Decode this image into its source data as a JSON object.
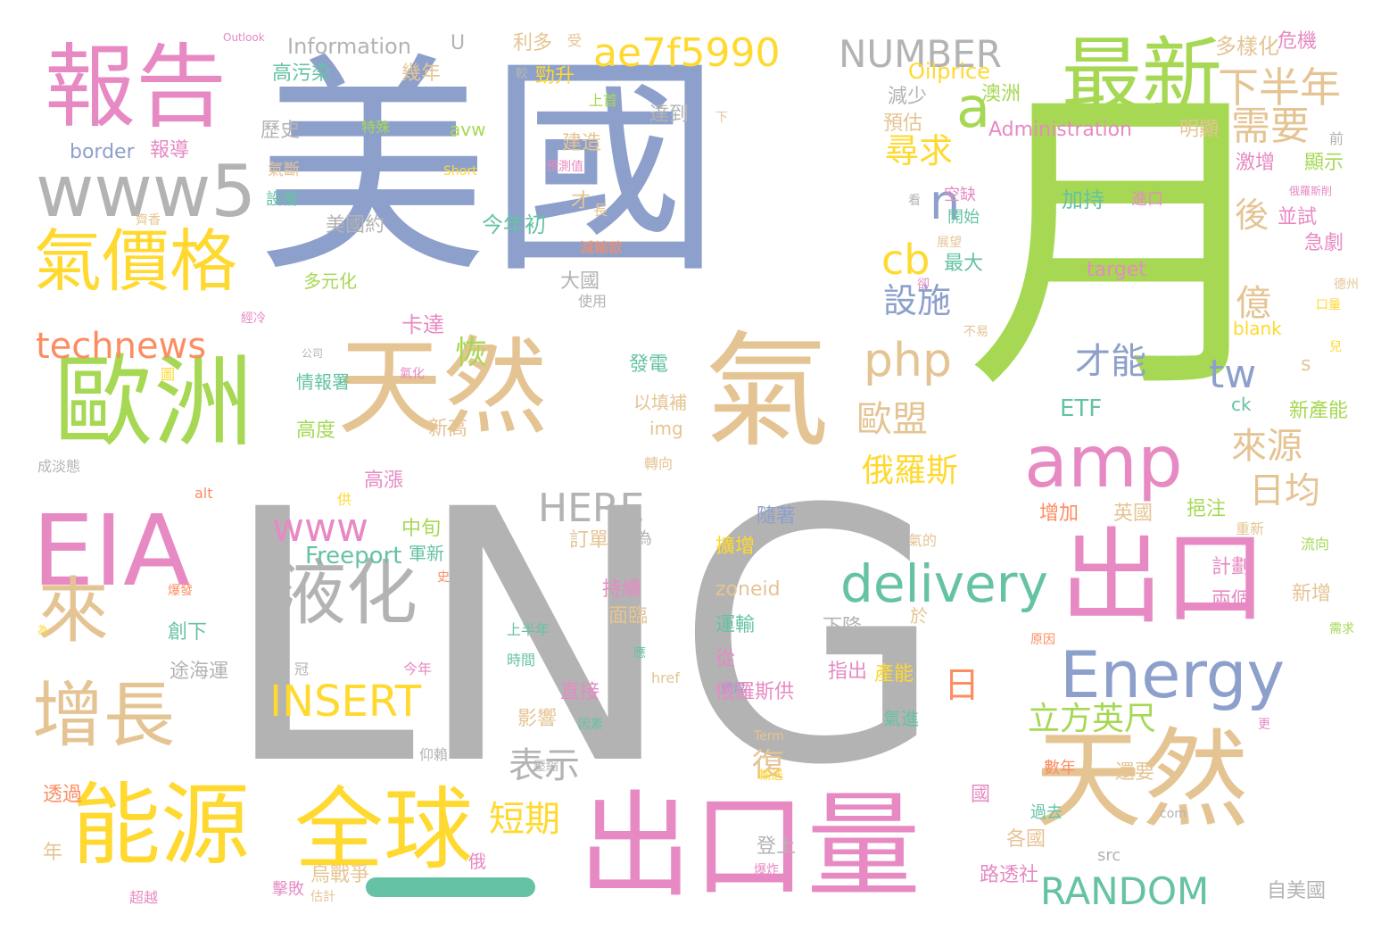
{
  "palette": {
    "grey": "#b3b3b3",
    "blue": "#8da0cb",
    "green": "#a6d854",
    "tan": "#e5c494",
    "pink": "#e78ac3",
    "yellow": "#ffd92f",
    "orange": "#fc8d62",
    "teal": "#66c2a5"
  },
  "words": [
    "LNG",
    "美國",
    "月",
    "天然",
    "氣",
    "天然",
    "出口量",
    "出口",
    "歐洲",
    "EIA",
    "能源",
    "全球",
    "報告",
    "最新",
    "www5",
    "氣價格",
    "amp",
    "Energy",
    "液化",
    "來",
    "增長",
    "ae7f5990",
    "NUMBER",
    "下半年",
    "需要",
    "a",
    "n",
    "尋求",
    "technews",
    "php",
    "cb",
    "設施",
    "delivery",
    "www",
    "HERE",
    "Freeport",
    "INSERT",
    "RANDOM",
    "tw",
    "s",
    "日均",
    "來源",
    "歐盟",
    "俄羅斯",
    "億",
    "才能",
    "立方英尺",
    "表示",
    "短期",
    "日",
    "後",
    "恢",
    "復",
    "Information",
    "Outlook",
    "U",
    "利多",
    "受",
    "多樣化",
    "危機",
    "Oilprice",
    "高污染",
    "幾年",
    "勁升",
    "澳洲",
    "減少",
    "預估",
    "Administration",
    "明顯",
    "歷史",
    "border",
    "報導",
    "avw",
    "建造",
    "達到",
    "上首",
    "特殊",
    "Short",
    "預測值",
    "氣斷",
    "看",
    "進口",
    "加持",
    "激增",
    "顯示",
    "前",
    "設備",
    "美國約",
    "今年初",
    "開始",
    "空缺",
    "並試",
    "急劇",
    "俄羅斯削",
    "多元化",
    "大國",
    "最大",
    "卻",
    "target",
    "使用",
    "德州",
    "口量",
    "經冷",
    "卡達",
    "不易",
    "blank",
    "兒",
    "公司",
    "情報署",
    "氣化",
    "發電",
    "ETF",
    "以填補",
    "新高",
    "新產能",
    "ck",
    "高度",
    "img",
    "高漲",
    "轉向",
    "成淡態",
    "alt",
    "供",
    "隨著",
    "增加",
    "英國",
    "挹注",
    "重新",
    "中旬",
    "成為",
    "訂單",
    "氣的",
    "流向",
    "擴增",
    "計劃",
    "兩個",
    "持續",
    "新增",
    "面臨",
    "爆發",
    "zoneid",
    "於",
    "需求",
    "創下",
    "運輸",
    "上半年",
    "下降",
    "應",
    "原因",
    "途海運",
    "時間",
    "從",
    "href",
    "指出",
    "產能",
    "直接",
    "燃煤",
    "俄羅斯供",
    "冠",
    "今年",
    "影響",
    "因素",
    "氣進",
    "Term",
    "更",
    "仰賴",
    "國",
    "透過",
    "壓縮",
    "數年",
    "還要",
    "輸送",
    "com",
    "過去",
    "各國",
    "登上",
    "烏戰爭",
    "俄",
    "年",
    "src",
    "擊敗",
    "路透社",
    "自美國",
    "超越",
    "估計",
    "爆炸",
    "減輸歐",
    "長",
    "才",
    "較",
    "下",
    "軍新",
    "史",
    "為",
    "圖",
    "齊香",
    "展望"
  ]
}
